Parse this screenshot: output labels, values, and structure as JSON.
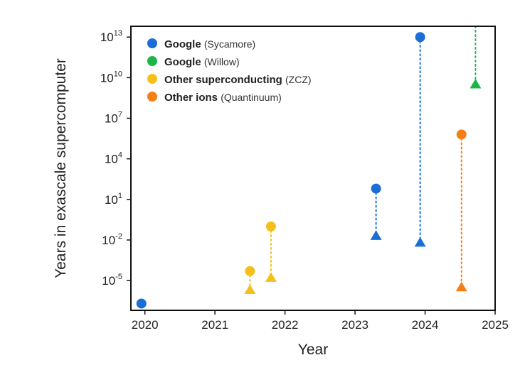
{
  "chart_data": {
    "type": "scatter",
    "xlabel": "Year",
    "ylabel": "Years in exascale supercomputer",
    "xlim": [
      2019.8,
      2025.0
    ],
    "ylog": true,
    "ylim_log10": [
      -7.2,
      13.8
    ],
    "xticks": [
      2020,
      2021,
      2022,
      2023,
      2024,
      2025
    ],
    "xtick_labels": [
      "2020",
      "2021",
      "2022",
      "2023",
      "2024",
      "2025"
    ],
    "yticks_log10": [
      -5,
      -2,
      1,
      4,
      7,
      10,
      13
    ],
    "ytick_base": "10",
    "ytick_exponents": [
      "-5",
      "-2",
      "1",
      "4",
      "7",
      "10",
      "13"
    ],
    "grid": false,
    "legend_position": "top-left",
    "series": [
      {
        "name": "Google",
        "detail": "(Sycamore)",
        "color": "#1a6fd6",
        "points": [
          {
            "x": 2019.95,
            "y_log10": -6.7,
            "marker": "circle"
          },
          {
            "x": 2023.3,
            "y_log10": 1.8,
            "marker": "circle"
          },
          {
            "x": 2023.3,
            "y_log10": -1.7,
            "marker": "triangle"
          },
          {
            "x": 2023.93,
            "y_log10": 13.0,
            "marker": "circle"
          },
          {
            "x": 2023.93,
            "y_log10": -2.2,
            "marker": "triangle"
          }
        ],
        "connectors": [
          {
            "x": 2023.3,
            "from_log10": 1.8,
            "to_log10": -1.7
          },
          {
            "x": 2023.93,
            "from_log10": 13.0,
            "to_log10": -2.2
          }
        ]
      },
      {
        "name": "Google",
        "detail": "(Willow)",
        "color": "#1db548",
        "points": [
          {
            "x": 2024.72,
            "y_log10": 9.5,
            "marker": "triangle"
          }
        ],
        "connectors": [
          {
            "x": 2024.72,
            "from_log10": 13.8,
            "to_log10": 9.5
          }
        ]
      },
      {
        "name": "Other superconducting",
        "detail": "(ZCZ)",
        "color": "#f5bf1b",
        "points": [
          {
            "x": 2021.5,
            "y_log10": -4.3,
            "marker": "circle"
          },
          {
            "x": 2021.5,
            "y_log10": -5.7,
            "marker": "triangle"
          },
          {
            "x": 2021.8,
            "y_log10": -1.0,
            "marker": "circle"
          },
          {
            "x": 2021.8,
            "y_log10": -4.8,
            "marker": "triangle"
          }
        ],
        "connectors": [
          {
            "x": 2021.5,
            "from_log10": -4.3,
            "to_log10": -5.7
          },
          {
            "x": 2021.8,
            "from_log10": -1.0,
            "to_log10": -4.8
          }
        ]
      },
      {
        "name": "Other ions",
        "detail": "(Quantinuum)",
        "color": "#f57f17",
        "points": [
          {
            "x": 2024.52,
            "y_log10": 5.8,
            "marker": "circle"
          },
          {
            "x": 2024.52,
            "y_log10": -5.5,
            "marker": "triangle"
          }
        ],
        "connectors": [
          {
            "x": 2024.52,
            "from_log10": 5.8,
            "to_log10": -5.5
          }
        ]
      }
    ]
  }
}
